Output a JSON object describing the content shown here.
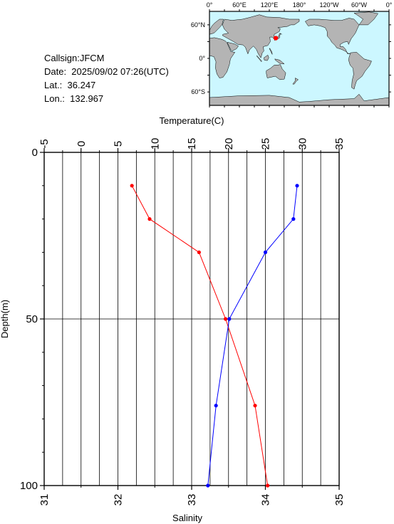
{
  "header": {
    "callsign": "Callsign:JFCM",
    "date": "Date:  2025/09/02 07:26(UTC)",
    "lat": "Lat.:  36.247",
    "lon": "Lon.:  132.967"
  },
  "map": {
    "top_labels": [
      "0°",
      "60°E",
      "120°E",
      "180°",
      "120°W",
      "60°W",
      "0°"
    ],
    "side_labels": [
      "60°N",
      "0°",
      "60°S"
    ],
    "ocean_color": "#ccf7ff",
    "land_color": "#b4b4b4",
    "marker_color": "#ff0000",
    "marker": {
      "lat": 36.247,
      "lon": 132.967
    }
  },
  "chart_data": {
    "type": "line",
    "top_axis_label": "Temperature(C)",
    "bottom_axis_label": "Salinity",
    "ylabel": "Depth(m)",
    "top_ticks": [
      "-5",
      "0",
      "5",
      "10",
      "15",
      "20",
      "25",
      "30",
      "35"
    ],
    "bottom_ticks": [
      "31",
      "32",
      "33",
      "34",
      "35"
    ],
    "y_ticks": [
      "0",
      "50",
      "100"
    ],
    "temperature_range": [
      -5,
      35
    ],
    "salinity_range": [
      31,
      35
    ],
    "depth_range": [
      0,
      100
    ],
    "grid": true,
    "series": [
      {
        "axis": "temperature",
        "color": "#ff0000",
        "points": [
          {
            "depth": 10,
            "value": 6.9
          },
          {
            "depth": 20,
            "value": 9.3
          },
          {
            "depth": 30,
            "value": 16.0
          },
          {
            "depth": 50,
            "value": 19.6
          },
          {
            "depth": 76,
            "value": 23.6
          },
          {
            "depth": 100,
            "value": 25.3
          }
        ]
      },
      {
        "axis": "salinity",
        "color": "#0000ff",
        "points": [
          {
            "depth": 10,
            "value": 34.43
          },
          {
            "depth": 20,
            "value": 34.38
          },
          {
            "depth": 30,
            "value": 34.0
          },
          {
            "depth": 50,
            "value": 33.51
          },
          {
            "depth": 76,
            "value": 33.33
          },
          {
            "depth": 100,
            "value": 33.22
          }
        ]
      }
    ]
  }
}
